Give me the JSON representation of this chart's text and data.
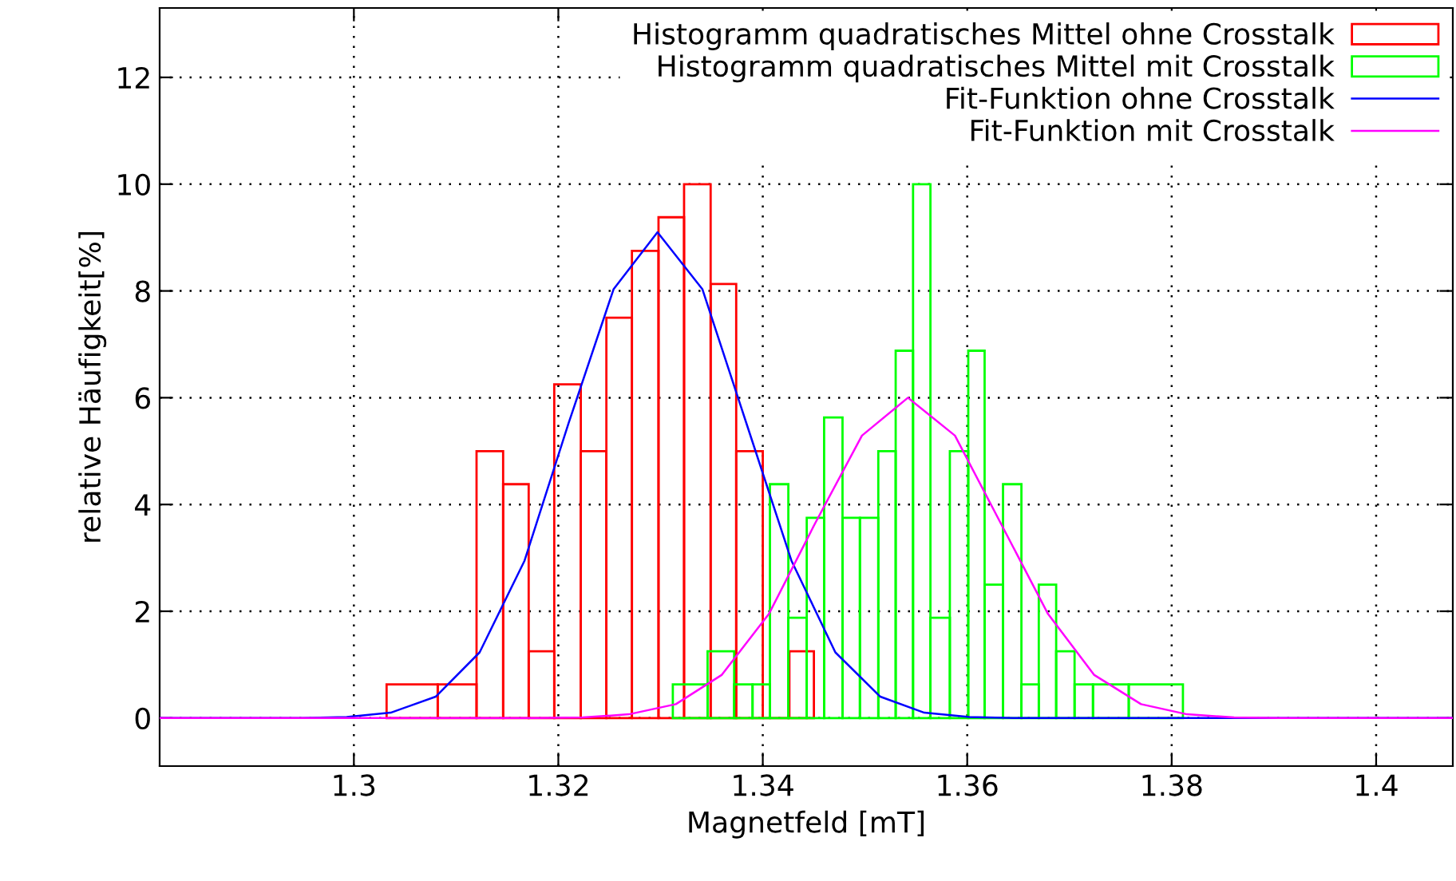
{
  "chart_data": {
    "type": "histogram",
    "xlabel": "Magnetfeld [mT]",
    "ylabel": "relative Häufigkeit[%]",
    "xlim": [
      1.281,
      1.4075
    ],
    "ylim": [
      -0.9,
      13.3
    ],
    "xticks": [
      {
        "value": 1.3,
        "label": "1.3"
      },
      1.32,
      1.34,
      1.36,
      1.38,
      {
        "value": 1.4,
        "label": "1.4"
      }
    ],
    "yticks": [
      0,
      2,
      4,
      6,
      8,
      10,
      12
    ],
    "grid": true,
    "legend": "top right",
    "series": [
      {
        "name": "Histogramm quadratisches Mittel ohne Crosstalk",
        "color": "#ff0000",
        "bins": [
          1.3032,
          1.3082,
          1.312,
          1.3146,
          1.3171,
          1.3196,
          1.3222,
          1.3247,
          1.3272,
          1.3298,
          1.3323,
          1.3349,
          1.3374,
          1.34,
          1.3426,
          1.345
        ],
        "values": [
          0.63,
          0.63,
          5,
          4.38,
          1.25,
          6.25,
          5,
          7.5,
          8.75,
          9.38,
          10,
          8.13,
          5,
          0,
          1.25
        ]
      },
      {
        "name": "Histogramm quadratisches Mittel mit Crosstalk",
        "color": "#00ff00",
        "bins": [
          1.3312,
          1.3346,
          1.3372,
          1.339,
          1.3407,
          1.3425,
          1.3443,
          1.346,
          1.3478,
          1.3495,
          1.3513,
          1.353,
          1.3547,
          1.3564,
          1.3583,
          1.3601,
          1.3617,
          1.3635,
          1.3653,
          1.367,
          1.3687,
          1.3705,
          1.3723,
          1.3758,
          1.3811
        ],
        "values": [
          0.63,
          1.25,
          0.63,
          0.63,
          4.38,
          1.88,
          3.75,
          5.63,
          3.75,
          3.75,
          5,
          6.88,
          10,
          1.88,
          5,
          6.88,
          2.5,
          4.38,
          0.63,
          2.5,
          1.25,
          0.63,
          0.63,
          0.63
        ]
      },
      {
        "name": "Fit-Funktion ohne Crosstalk",
        "type": "line",
        "color": "#0000ff",
        "x": [
          1.281,
          1.2949,
          1.2993,
          1.3036,
          1.308,
          1.3123,
          1.3167,
          1.321,
          1.3254,
          1.3297,
          1.3341,
          1.3384,
          1.3428,
          1.3471,
          1.3515,
          1.3558,
          1.3602,
          1.3645,
          1.4075
        ],
        "values": [
          0,
          0,
          0.02,
          0.1,
          0.4,
          1.23,
          2.95,
          5.52,
          8.03,
          9.1,
          8.03,
          5.52,
          2.95,
          1.23,
          0.4,
          0.1,
          0.02,
          0,
          0
        ]
      },
      {
        "name": "Fit-Funktion mit Crosstalk",
        "type": "line",
        "color": "#ff00ff",
        "x": [
          1.281,
          1.3178,
          1.3224,
          1.3269,
          1.3315,
          1.336,
          1.3406,
          1.3451,
          1.3497,
          1.3542,
          1.3588,
          1.3633,
          1.3679,
          1.3724,
          1.377,
          1.3815,
          1.3861,
          1.3906,
          1.4075
        ],
        "values": [
          0,
          0,
          0.01,
          0.07,
          0.26,
          0.81,
          1.95,
          3.64,
          5.29,
          6,
          5.29,
          3.64,
          1.95,
          0.81,
          0.26,
          0.07,
          0.01,
          0,
          0
        ]
      }
    ]
  }
}
